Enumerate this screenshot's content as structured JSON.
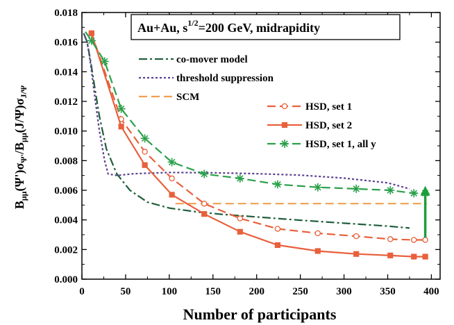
{
  "chart_data": {
    "type": "line",
    "title": "Au+Au, s^1/2=200 GeV, midrapidity",
    "title_parts": {
      "base": "Au+Au,  s",
      "sup": "1/2",
      "rest": "=200 GeV, midrapidity"
    },
    "xlabel": "Number of participants",
    "ylabel_parts": [
      "B",
      "μμ",
      "(Ψ')σ",
      "Ψ'",
      "/B",
      "μμ",
      "(J/Ψ)σ",
      "J/Ψ"
    ],
    "xlim": [
      0,
      410
    ],
    "ylim": [
      0.0,
      0.018
    ],
    "x_ticks": [
      0,
      50,
      100,
      150,
      200,
      250,
      300,
      350,
      400
    ],
    "x_tick_labels": [
      "0",
      "50",
      "100",
      "150",
      "200",
      "250",
      "300",
      "350",
      "400"
    ],
    "y_ticks": [
      0.0,
      0.002,
      0.004,
      0.006,
      0.008,
      0.01,
      0.012,
      0.014,
      0.016,
      0.018
    ],
    "y_tick_labels": [
      "0.000",
      "0.002",
      "0.004",
      "0.006",
      "0.008",
      "0.010",
      "0.012",
      "0.014",
      "0.016",
      "0.018"
    ],
    "series": [
      {
        "name": "co-mover model",
        "color": "#1f5f3a",
        "dash": "dashdot",
        "marker": "none",
        "x": [
          2,
          6,
          10,
          15,
          20,
          28,
          40,
          55,
          75,
          100,
          130,
          160,
          200,
          250,
          300,
          350,
          375
        ],
        "y": [
          0.0166,
          0.016,
          0.0147,
          0.0128,
          0.011,
          0.0088,
          0.0071,
          0.006,
          0.0052,
          0.0048,
          0.00455,
          0.00438,
          0.0042,
          0.00398,
          0.00378,
          0.00358,
          0.00345
        ]
      },
      {
        "name": "threshold suppression",
        "color": "#5a3f8f",
        "dash": "dot",
        "marker": "none",
        "x": [
          2,
          6,
          10,
          15,
          20,
          26,
          30,
          40,
          60,
          100,
          150,
          200,
          250,
          300,
          350,
          375
        ],
        "y": [
          0.0166,
          0.016,
          0.0145,
          0.0122,
          0.01,
          0.008,
          0.0071,
          0.007,
          0.00712,
          0.0072,
          0.00718,
          0.00712,
          0.00702,
          0.00682,
          0.0065,
          0.0061
        ]
      },
      {
        "name": "SCM",
        "color": "#f0a050",
        "dash": "dash",
        "marker": "none",
        "x": [
          107,
          395
        ],
        "y": [
          0.0051,
          0.0051
        ]
      },
      {
        "name": "HSD, set 1",
        "color": "#e8603c",
        "dash": "dash",
        "marker": "circle-open",
        "x": [
          11,
          45,
          72,
          103,
          140,
          181,
          224,
          270,
          314,
          353,
          380,
          393
        ],
        "y": [
          0.0166,
          0.0108,
          0.0086,
          0.0068,
          0.0051,
          0.0041,
          0.0034,
          0.0031,
          0.0029,
          0.0027,
          0.00265,
          0.00265
        ]
      },
      {
        "name": "HSD, set 2",
        "color": "#e8603c",
        "dash": "solid",
        "marker": "square-filled",
        "x": [
          11,
          45,
          72,
          103,
          140,
          181,
          224,
          270,
          314,
          353,
          380,
          393
        ],
        "y": [
          0.0166,
          0.0103,
          0.0077,
          0.0057,
          0.0044,
          0.0032,
          0.0023,
          0.0019,
          0.0017,
          0.0016,
          0.00152,
          0.00152
        ]
      },
      {
        "name": "HSD, set 1, all y",
        "color": "#2aa04a",
        "dash": "dash",
        "marker": "star",
        "x": [
          4,
          11,
          26,
          45,
          72,
          103,
          140,
          181,
          224,
          270,
          314,
          353,
          380,
          393
        ],
        "y": [
          0.0167,
          0.0161,
          0.0147,
          0.0115,
          0.0095,
          0.0079,
          0.0071,
          0.0068,
          0.0064,
          0.0062,
          0.0061,
          0.006,
          0.0058,
          0.0058
        ]
      }
    ],
    "annotations": [
      {
        "type": "arrow",
        "color": "#1e9e3a",
        "x": 393,
        "y_from": 0.0028,
        "y_to": 0.0063,
        "direction": "up"
      }
    ],
    "legend": {
      "placement": "inside-upper-right"
    }
  }
}
